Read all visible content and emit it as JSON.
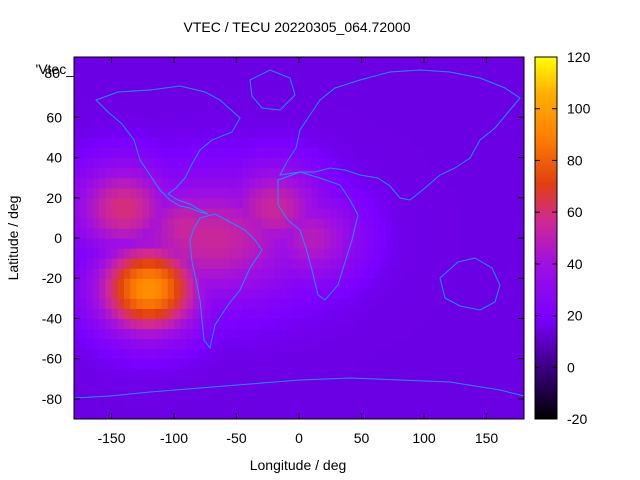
{
  "chart_data": {
    "type": "heatmap",
    "title": "VTEC / TECU 20220305_064.72000",
    "xlabel": "Longitude / deg",
    "ylabel": "Latitude / deg",
    "xlim": [
      -180,
      180
    ],
    "ylim": [
      -90,
      90
    ],
    "x_ticks": [
      -150,
      -100,
      -50,
      0,
      50,
      100,
      150
    ],
    "y_ticks": [
      60,
      40,
      20,
      0,
      -20,
      -40,
      -60,
      -80
    ],
    "y_tick_top_label": "80",
    "colorbar": {
      "range": [
        -20,
        120
      ],
      "ticks": [
        120,
        100,
        80,
        60,
        40,
        20,
        0,
        -20
      ]
    },
    "legend_label": "'Vtec_",
    "field_regions": [
      {
        "name": "background",
        "lon_range": [
          -180,
          180
        ],
        "lat_range": [
          -90,
          90
        ],
        "vtec": 15
      },
      {
        "name": "equatorial-anomaly-americas",
        "lon_center": -90,
        "lat_center": 5,
        "vtec": 55
      },
      {
        "name": "southern-crest-peak",
        "lon_center": -120,
        "lat_center": -25,
        "vtec": 95
      },
      {
        "name": "northern-crest",
        "lon_center": -140,
        "lat_center": 15,
        "vtec": 60
      },
      {
        "name": "atlantic-tongue",
        "lon_center": -20,
        "lat_center": 15,
        "vtec": 55
      },
      {
        "name": "atlantic-south-tail",
        "lon_center": 10,
        "lat_center": 0,
        "vtec": 48
      }
    ],
    "colors": {
      "palette": [
        "#000000",
        "#3a0080",
        "#7a00ff",
        "#c020c0",
        "#e05000",
        "#ff8c00",
        "#ffff00"
      ],
      "coastline": "#1e90ff"
    }
  }
}
